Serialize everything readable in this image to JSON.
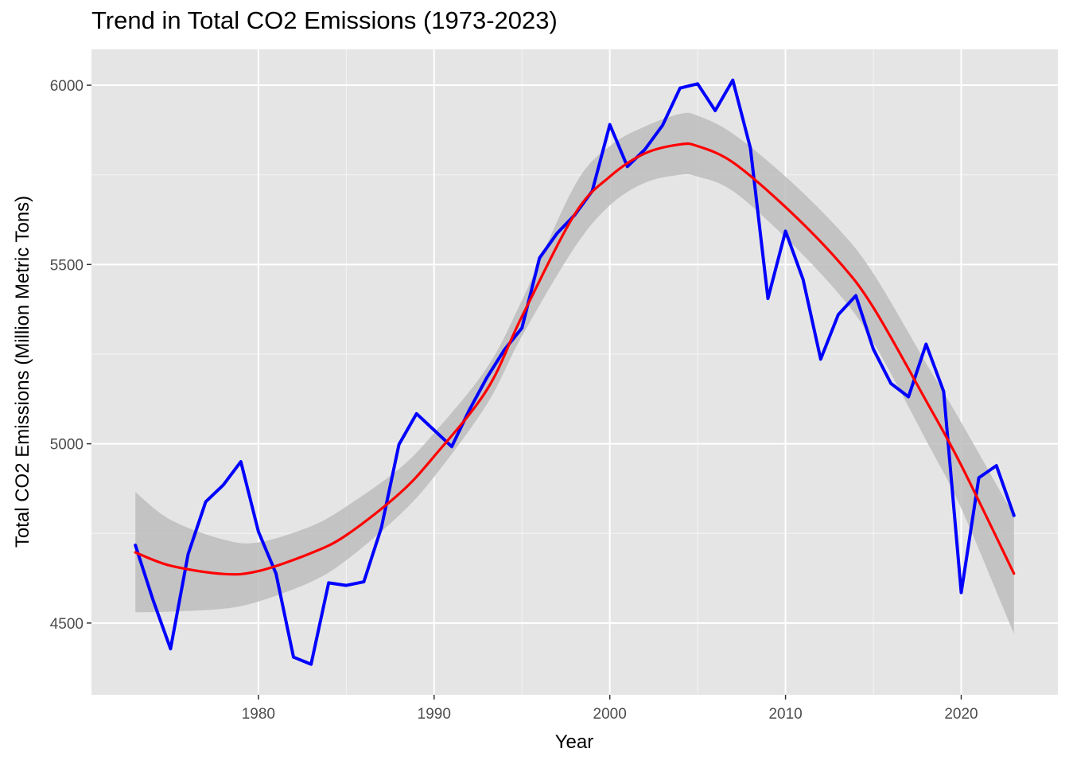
{
  "chart_data": {
    "type": "line",
    "title": "Trend in Total CO2 Emissions (1973-2023)",
    "xlabel": "Year",
    "ylabel": "Total CO2 Emissions (Million Metric Tons)",
    "xlim": [
      1970.5,
      2025.5
    ],
    "ylim": [
      4300,
      6100
    ],
    "x_ticks": [
      1980,
      1990,
      2000,
      2010,
      2020
    ],
    "y_ticks": [
      4500,
      5000,
      5500,
      6000
    ],
    "grid": true,
    "legend": "none",
    "colors": {
      "background": "#e5e5e5",
      "grid": "#ffffff",
      "observed": "#0000ff",
      "trend": "#ff0000",
      "band": "#bdbdbd"
    },
    "series": [
      {
        "kind": "observed",
        "x": [
          1973,
          1974,
          1975,
          1976,
          1977,
          1978,
          1979,
          1980,
          1981,
          1982,
          1983,
          1984,
          1985,
          1986,
          1987,
          1988,
          1989,
          1990,
          1991,
          1992,
          1993,
          1994,
          1995,
          1996,
          1997,
          1998,
          1999,
          2000,
          2001,
          2002,
          2003,
          2004,
          2005,
          2006,
          2007,
          2008,
          2009,
          2010,
          2011,
          2012,
          2013,
          2014,
          2015,
          2016,
          2017,
          2018,
          2019,
          2020,
          2021,
          2022,
          2023
        ],
        "values": [
          4717,
          4565,
          4428,
          4692,
          4838,
          4885,
          4950,
          4755,
          4638,
          4405,
          4385,
          4612,
          4605,
          4615,
          4766,
          4998,
          5084,
          5038,
          4992,
          5094,
          5184,
          5262,
          5323,
          5518,
          5587,
          5638,
          5705,
          5890,
          5773,
          5821,
          5888,
          5992,
          6004,
          5929,
          6014,
          5825,
          5405,
          5593,
          5458,
          5236,
          5360,
          5413,
          5264,
          5168,
          5131,
          5278,
          5146,
          4585,
          4905,
          4939,
          4800
        ]
      },
      {
        "kind": "smooth",
        "x": [
          1973,
          1975,
          1978,
          1980,
          1983,
          1985,
          1988,
          1990,
          1993,
          1995,
          1998,
          2000,
          2002,
          2004,
          2005,
          2007,
          2010,
          2013,
          2015,
          2018,
          2020,
          2023
        ],
        "values": [
          4697,
          4660,
          4637,
          4645,
          4695,
          4745,
          4860,
          4965,
          5150,
          5355,
          5640,
          5745,
          5810,
          5835,
          5830,
          5785,
          5660,
          5510,
          5380,
          5120,
          4940,
          4638
        ],
        "lower": [
          4530,
          4532,
          4540,
          4560,
          4615,
          4675,
          4800,
          4908,
          5110,
          5300,
          5548,
          5665,
          5728,
          5750,
          5745,
          5705,
          5575,
          5420,
          5283,
          5010,
          4820,
          4470
        ],
        "upper": [
          4865,
          4788,
          4733,
          4725,
          4770,
          4825,
          4930,
          5030,
          5212,
          5400,
          5720,
          5830,
          5885,
          5920,
          5915,
          5865,
          5745,
          5600,
          5475,
          5225,
          5060,
          4800
        ]
      }
    ]
  }
}
